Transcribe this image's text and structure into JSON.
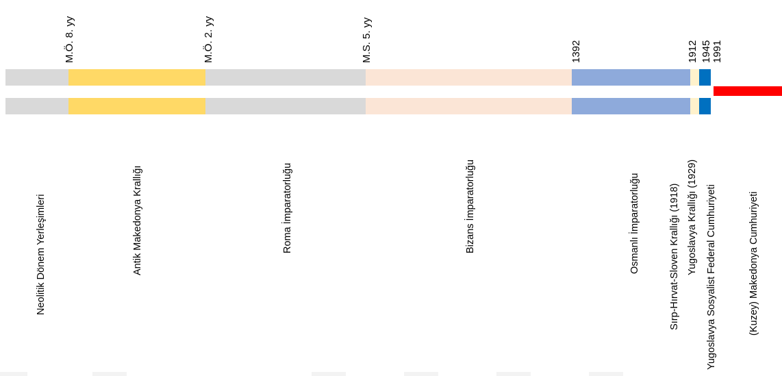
{
  "timeline": {
    "dates": [
      {
        "text": "M.Ö. 8. yy"
      },
      {
        "text": "M.Ö. 2. yy"
      },
      {
        "text": "M.S. 5. yy"
      },
      {
        "text": "1392"
      },
      {
        "text": "1912"
      },
      {
        "text": "1945"
      },
      {
        "text": "1991"
      }
    ],
    "periods": [
      {
        "label": "Neolitik Dönem Yerleşimleri",
        "color": "#d9d9d9"
      },
      {
        "label": "Antik Makedonya Krallığı",
        "color": "#ffd966"
      },
      {
        "label": "Roma İmparatorluğu",
        "color": "#d9d9d9"
      },
      {
        "label": "Bizans İmparatorluğu",
        "color": "#fbe5d6"
      },
      {
        "label": "Osmanlı İmparatorluğu",
        "color": "#8eaadb"
      },
      {
        "label": "Sırp-Hırvat-Sloven Krallığı (1918)",
        "color": "#fff2cc"
      },
      {
        "label": "Yugoslavya Krallığı (1929)",
        "color": "#fff2cc"
      },
      {
        "label": "Yugoslavya Sosyalist Federal Cumhuriyeti",
        "color": "#0070c0"
      },
      {
        "label": "(Kuzey) Makedonya Cumhuriyeti",
        "color": "#ff0000"
      }
    ]
  }
}
